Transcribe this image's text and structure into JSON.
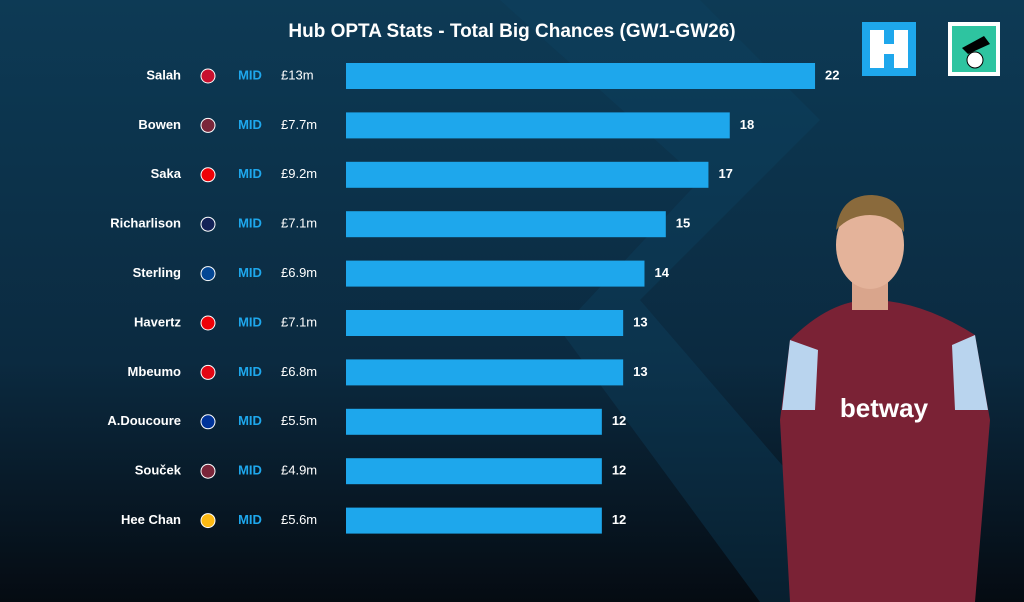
{
  "chart_data": {
    "type": "bar",
    "orientation": "horizontal",
    "title": "Hub OPTA Stats - Total Big Chances (GW1-GW26)",
    "categories": [
      "Salah",
      "Bowen",
      "Saka",
      "Richarlison",
      "Sterling",
      "Havertz",
      "Mbeumo",
      "A.Doucoure",
      "Souček",
      "Hee Chan"
    ],
    "positions": [
      "MID",
      "MID",
      "MID",
      "MID",
      "MID",
      "MID",
      "MID",
      "MID",
      "MID",
      "MID"
    ],
    "prices": [
      "£13m",
      "£7.7m",
      "£9.2m",
      "£7.1m",
      "£6.9m",
      "£7.1m",
      "£6.8m",
      "£5.5m",
      "£4.9m",
      "£5.6m"
    ],
    "values": [
      22,
      18,
      17,
      15,
      14,
      13,
      13,
      12,
      12,
      12
    ],
    "color": "#1ea7ec"
  }
}
